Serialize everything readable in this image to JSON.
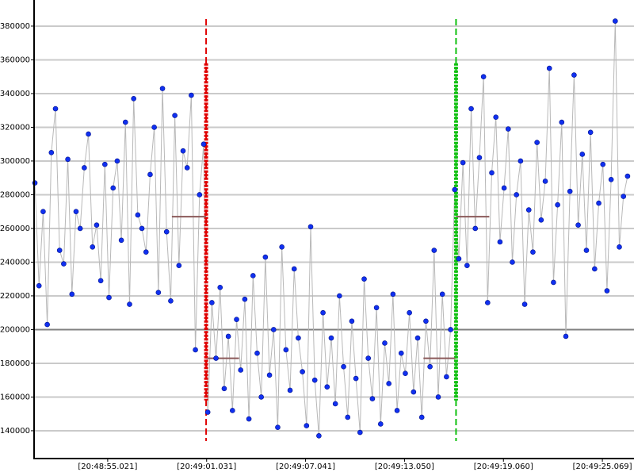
{
  "chart_data": {
    "type": "line",
    "color": "#1030f0",
    "line_color": "#b8b8b8",
    "grid": true,
    "xlim": [
      50.55,
      86.99
    ],
    "ylim": [
      123500,
      395500
    ],
    "xticks": [
      {
        "value": 55.021,
        "label": "[20:48:55.021]"
      },
      {
        "value": 61.031,
        "label": "[20:49:01.031]"
      },
      {
        "value": 67.041,
        "label": "[20:49:07.041]"
      },
      {
        "value": 73.05,
        "label": "[20:49:13.050]"
      },
      {
        "value": 79.06,
        "label": "[20:49:19.060]"
      },
      {
        "value": 85.069,
        "label": "[20:49:25.069]"
      }
    ],
    "yticks": [
      140000,
      160000,
      180000,
      200000,
      220000,
      240000,
      260000,
      280000,
      300000,
      320000,
      340000,
      360000,
      380000
    ],
    "threshold": 200000,
    "vlines": [
      {
        "x": 61.0,
        "color": "#e00000",
        "from": 158000,
        "to": 358000
      },
      {
        "x": 76.18,
        "color": "#10c010",
        "from": 158000,
        "to": 358000
      }
    ],
    "segments": [
      {
        "x0": 58.92,
        "x1": 61.0,
        "value": 267000
      },
      {
        "x0": 61.08,
        "x1": 63.0,
        "value": 183000
      },
      {
        "x0": 74.2,
        "x1": 76.13,
        "value": 183000
      },
      {
        "x0": 76.2,
        "x1": 78.2,
        "value": 267000
      }
    ],
    "segment_color": "#8b5a5a",
    "x": [
      50.6,
      50.85,
      51.1,
      51.35,
      51.6,
      51.85,
      52.1,
      52.35,
      52.6,
      52.85,
      53.1,
      53.35,
      53.6,
      53.85,
      54.1,
      54.35,
      54.6,
      54.85,
      55.1,
      55.35,
      55.6,
      55.85,
      56.1,
      56.35,
      56.6,
      56.85,
      57.1,
      57.35,
      57.6,
      57.85,
      58.1,
      58.35,
      58.6,
      58.85,
      59.1,
      59.35,
      59.6,
      59.85,
      60.1,
      60.35,
      60.6,
      60.85,
      61.1,
      61.35,
      61.6,
      61.85,
      62.1,
      62.35,
      62.6,
      62.85,
      63.1,
      63.35,
      63.6,
      63.85,
      64.1,
      64.35,
      64.6,
      64.85,
      65.1,
      65.35,
      65.6,
      65.85,
      66.1,
      66.35,
      66.6,
      66.85,
      67.1,
      67.35,
      67.6,
      67.85,
      68.1,
      68.35,
      68.6,
      68.85,
      69.1,
      69.35,
      69.6,
      69.85,
      70.1,
      70.35,
      70.6,
      70.85,
      71.1,
      71.35,
      71.6,
      71.85,
      72.1,
      72.35,
      72.6,
      72.85,
      73.1,
      73.35,
      73.6,
      73.85,
      74.1,
      74.35,
      74.6,
      74.85,
      75.1,
      75.35,
      75.6,
      75.85,
      76.1,
      76.35,
      76.6,
      76.85,
      77.1,
      77.35,
      77.6,
      77.85,
      78.1,
      78.35,
      78.6,
      78.85,
      79.1,
      79.35,
      79.6,
      79.85,
      80.1,
      80.35,
      80.6,
      80.85,
      81.1,
      81.35,
      81.6,
      81.85,
      82.1,
      82.35,
      82.6,
      82.85,
      83.1,
      83.35,
      83.6,
      83.85,
      84.1,
      84.35,
      84.6,
      84.85,
      85.1,
      85.35,
      85.6,
      85.85,
      86.1,
      86.35,
      86.6
    ],
    "values": [
      287000,
      226000,
      270000,
      203000,
      305000,
      331000,
      247000,
      239000,
      301000,
      221000,
      270000,
      260000,
      296000,
      316000,
      249000,
      262000,
      229000,
      298000,
      219000,
      284000,
      300000,
      253000,
      323000,
      215000,
      337000,
      268000,
      260000,
      246000,
      292000,
      320000,
      222000,
      343000,
      258000,
      217000,
      327000,
      238000,
      306000,
      296000,
      339000,
      188000,
      280000,
      310000,
      151000,
      216000,
      183000,
      225000,
      165000,
      196000,
      152000,
      206000,
      176000,
      218000,
      147000,
      232000,
      186000,
      160000,
      243000,
      173000,
      200000,
      142000,
      249000,
      188000,
      164000,
      236000,
      195000,
      175000,
      143000,
      261000,
      170000,
      137000,
      210000,
      166000,
      195000,
      156000,
      220000,
      178000,
      148000,
      205000,
      171000,
      139000,
      230000,
      183000,
      159000,
      213000,
      144000,
      192000,
      168000,
      221000,
      152000,
      186000,
      174000,
      210000,
      163000,
      195000,
      148000,
      205000,
      178000,
      247000,
      160000,
      221000,
      172000,
      200000,
      283000,
      242000,
      299000,
      238000,
      331000,
      260000,
      302000,
      350000,
      216000,
      293000,
      326000,
      252000,
      284000,
      319000,
      240000,
      280000,
      300000,
      215000,
      271000,
      246000,
      311000,
      265000,
      288000,
      355000,
      228000,
      274000,
      323000,
      196000,
      282000,
      351000,
      262000,
      304000,
      247000,
      317000,
      236000,
      275000,
      298000,
      223000,
      289000,
      383000,
      249000,
      279000,
      291000
    ]
  }
}
